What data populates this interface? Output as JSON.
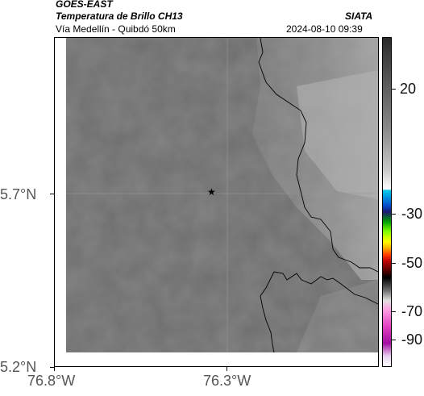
{
  "header": {
    "satellite": "GOES-EAST",
    "product": "Temperatura de Brillo CH13",
    "region": "Vía Medellín - Quibdó 50km",
    "org": "SIATA",
    "datetime": "2024-08-10 09:39"
  },
  "axes": {
    "x_ticks": [
      "76.8°W",
      "76.3°W"
    ],
    "y_ticks": [
      "5.7°N",
      "5.2°N"
    ]
  },
  "colorbar": {
    "ticks": [
      "20",
      "-30",
      "-50",
      "-70",
      "-90"
    ]
  },
  "marker": {
    "symbol": "★"
  }
}
